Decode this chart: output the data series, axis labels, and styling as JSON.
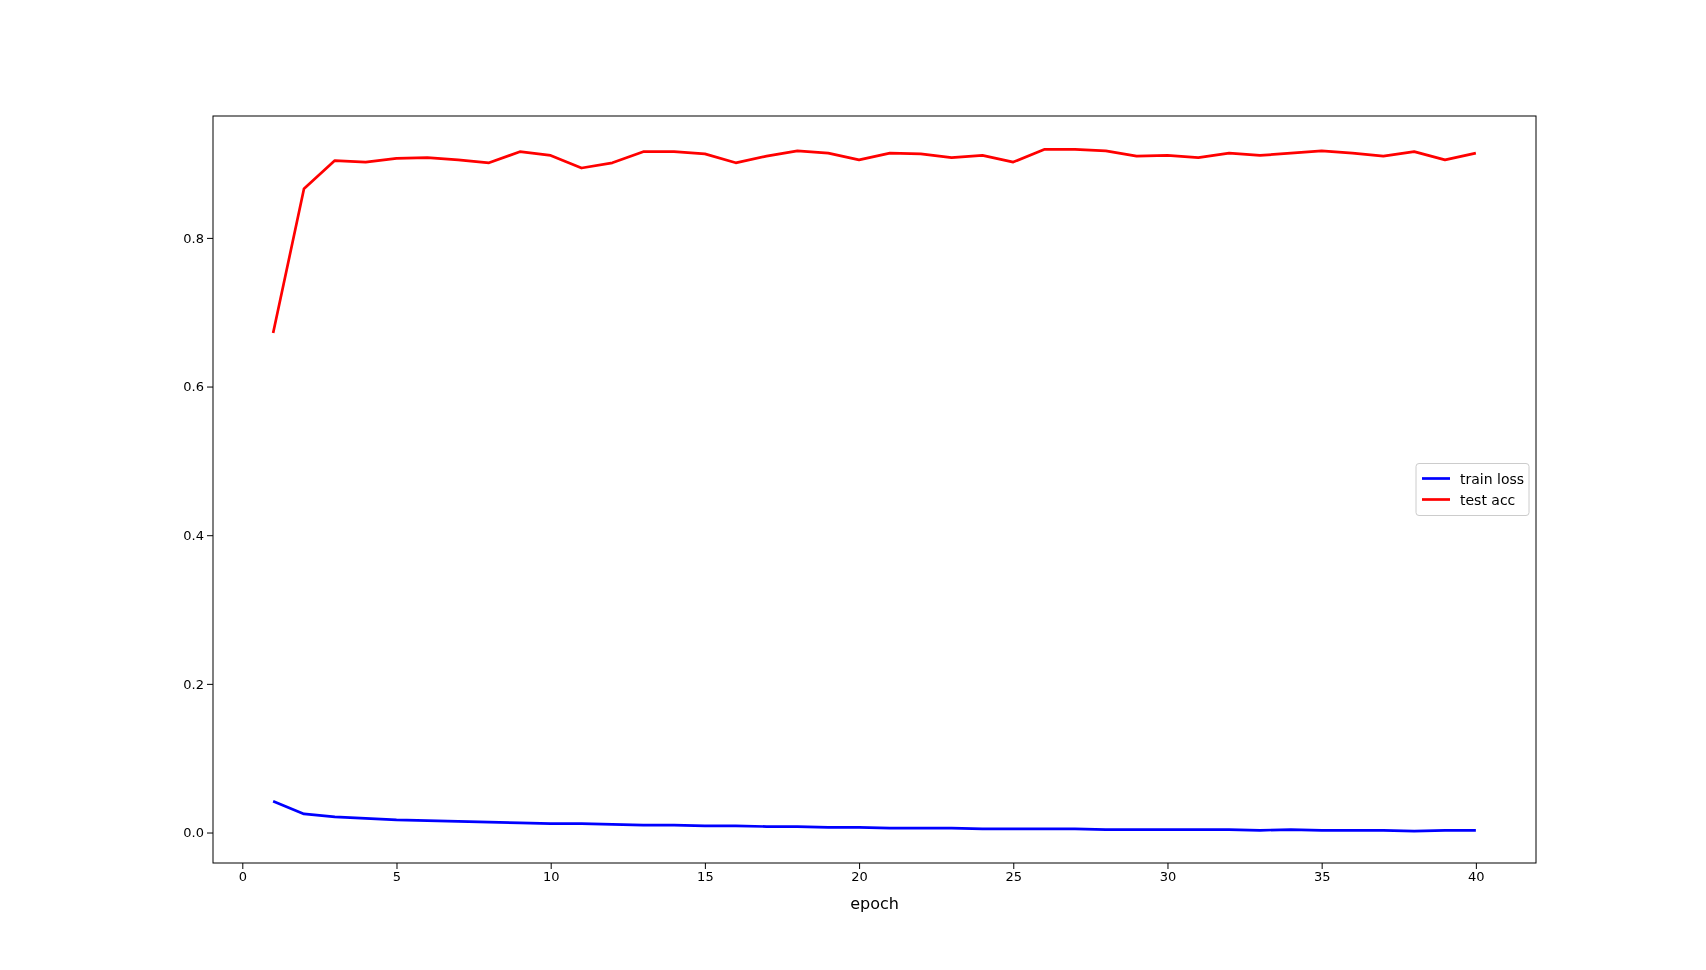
{
  "chart_data": {
    "type": "line",
    "xlabel": "epoch",
    "x": [
      1,
      2,
      3,
      4,
      5,
      6,
      7,
      8,
      9,
      10,
      11,
      12,
      13,
      14,
      15,
      16,
      17,
      18,
      19,
      20,
      21,
      22,
      23,
      24,
      25,
      26,
      27,
      28,
      29,
      30,
      31,
      32,
      33,
      34,
      35,
      36,
      37,
      38,
      39,
      40
    ],
    "series": [
      {
        "name": "train loss",
        "color": "#0000ff",
        "values": [
          0.042,
          0.025,
          0.021,
          0.019,
          0.017,
          0.016,
          0.015,
          0.014,
          0.013,
          0.012,
          0.012,
          0.011,
          0.01,
          0.01,
          0.009,
          0.009,
          0.008,
          0.008,
          0.007,
          0.007,
          0.006,
          0.006,
          0.006,
          0.005,
          0.005,
          0.005,
          0.005,
          0.004,
          0.004,
          0.004,
          0.004,
          0.004,
          0.003,
          0.004,
          0.003,
          0.003,
          0.003,
          0.002,
          0.003,
          0.003
        ]
      },
      {
        "name": "test acc",
        "color": "#ff0000",
        "values": [
          0.672,
          0.866,
          0.904,
          0.902,
          0.907,
          0.908,
          0.905,
          0.901,
          0.916,
          0.911,
          0.894,
          0.901,
          0.916,
          0.916,
          0.913,
          0.901,
          0.91,
          0.917,
          0.914,
          0.905,
          0.914,
          0.913,
          0.908,
          0.911,
          0.902,
          0.919,
          0.919,
          0.917,
          0.91,
          0.911,
          0.908,
          0.914,
          0.911,
          0.914,
          0.917,
          0.914,
          0.91,
          0.916,
          0.905,
          0.914
        ]
      }
    ],
    "xlim": [
      -0.95,
      41.95
    ],
    "xticks": [
      0,
      5,
      10,
      15,
      20,
      25,
      30,
      35,
      40
    ],
    "ylim": [
      -0.041,
      0.964
    ],
    "yticks": [
      {
        "value": 0,
        "label": "0.0"
      },
      {
        "value": 0.2,
        "label": "0.2"
      },
      {
        "value": 0.4,
        "label": "0.4"
      },
      {
        "value": 0.6,
        "label": "0.6"
      },
      {
        "value": 0.8,
        "label": "0.8"
      }
    ],
    "legend": "right",
    "marker": "none",
    "line_style": "solid",
    "grid": false
  }
}
